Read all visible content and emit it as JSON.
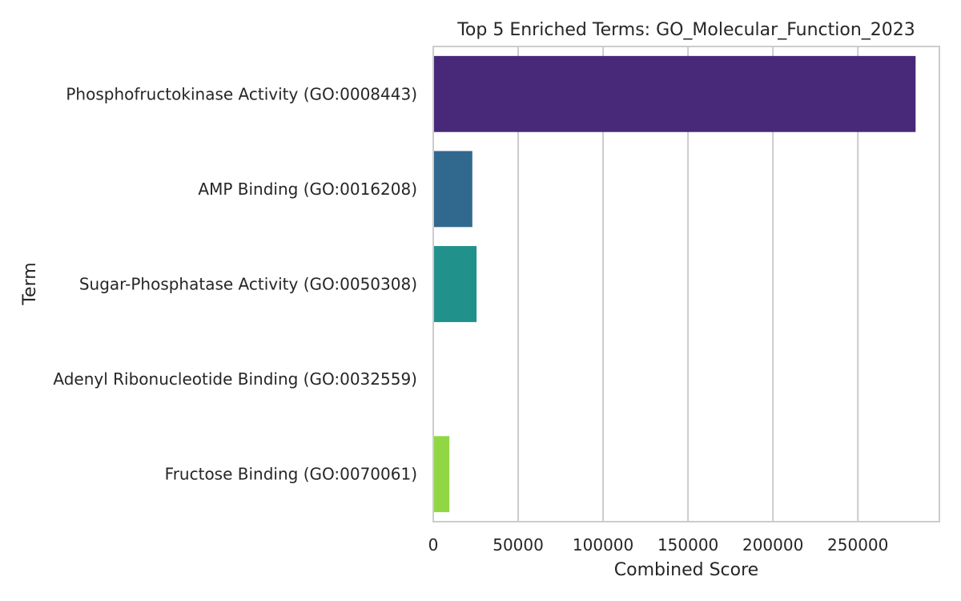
{
  "chart_data": {
    "type": "bar",
    "orientation": "horizontal",
    "title": "Top 5 Enriched Terms: GO_Molecular_Function_2023",
    "xlabel": "Combined Score",
    "ylabel": "Term",
    "categories": [
      "Phosphofructokinase Activity (GO:0008443)",
      "AMP Binding (GO:0016208)",
      "Sugar-Phosphatase Activity (GO:0050308)",
      "Adenyl Ribonucleotide Binding (GO:0032559)",
      "Fructose Binding (GO:0070061)"
    ],
    "values": [
      284000,
      23000,
      25500,
      0,
      9500
    ],
    "colors": [
      "#482878",
      "#31688e",
      "#21918c",
      "#35b779",
      "#90d743"
    ],
    "xlim": [
      0,
      298000
    ],
    "xticks": [
      0,
      50000,
      100000,
      150000,
      200000,
      250000
    ],
    "grid": true
  }
}
